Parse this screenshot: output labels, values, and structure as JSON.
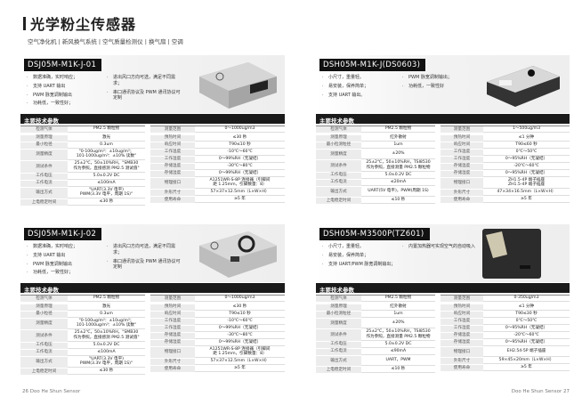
{
  "title": "光学粉尘传感器",
  "subtitle": "空气净化机 | 新风换气系统 | 空气质量检测仪 | 换气扇 | 空调",
  "section_header": "主要技术参数",
  "footer_left": "26  Doo He Shun Sensor",
  "footer_right": "Doo He Shun Sensor  27",
  "products": [
    {
      "model": "DSJ05M-M1K-J-01",
      "device": "silver",
      "bullets_a": [
        "数据准确，实时响应；",
        "支持 UART 输出",
        "PWM 脉宽调制输出",
        "功耗低，一致性好；"
      ],
      "bullets_b": [
        "进出风口方向可选，满足不同需求；",
        "串口通讯协议及 PWM 通讯协议可定制"
      ],
      "left": [
        [
          "检测气体",
          "PM2.5 颗粒物"
        ],
        [
          "测量原理",
          "激光"
        ],
        [
          "最小粒径",
          "0.3um"
        ],
        [
          "测量精度",
          "\"0-100ug/m³：±10ug/m³；\n101-1000ug/m³：±10% 读数\""
        ],
        [
          "测试条件",
          "25±2℃，50±10%RH，\"SMB30\n作为参照，直接感测 PM2.5 测试值\""
        ],
        [
          "工作电压",
          "5.0±0.2V DC"
        ],
        [
          "工作电流",
          "≤100mA"
        ],
        [
          "输出方式",
          "\"UART(3.3V 电平)\nPWM(3.3V 电平，周期 1S)\""
        ],
        [
          "上电稳定时间",
          "≤30 秒"
        ]
      ],
      "right": [
        [
          "测量范围",
          "0～1000ug/m3"
        ],
        [
          "预热时间",
          "≤30 秒"
        ],
        [
          "响应时间",
          "T90≤10 秒"
        ],
        [
          "工作温度",
          "-10℃～60℃"
        ],
        [
          "工作湿度",
          "0～99%RH（无凝结）"
        ],
        [
          "存储温度",
          "-30℃～80℃"
        ],
        [
          "存储湿度",
          "0～99%RH（无凝结）"
        ],
        [
          "物理接口",
          "A1251WR-S-8P 连接器（引脚间\n距 1.25mm，引脚数量：8）"
        ],
        [
          "外形尺寸",
          "57×37×12.5mm（L×W×H）"
        ],
        [
          "使用寿命",
          "≥5 年"
        ]
      ]
    },
    {
      "model": "DSJ05M-M1K-J-02",
      "device": "silver2",
      "bullets_a": [
        "数据准确，实时响应；",
        "支持 UART 输出",
        "PWM 脉宽调制输出",
        "功耗低，一致性好；"
      ],
      "bullets_b": [
        "进出风口方向可选，满足不同需求；",
        "串口通讯协议及 PWM 通讯协议可定制"
      ],
      "left": [
        [
          "检测气体",
          "PM2.5 颗粒物"
        ],
        [
          "测量原理",
          "激光"
        ],
        [
          "最小粒径",
          "0.3um"
        ],
        [
          "测量精度",
          "\"0-100ug/m³：±10ug/m³；\n101-1000ug/m³：±10% 读数\""
        ],
        [
          "测试条件",
          "25±2℃，50±10%RH，\"SMB30\n作为参照，直接感测 PM2.5 测试值\""
        ],
        [
          "工作电压",
          "5.0±0.2V DC"
        ],
        [
          "工作电流",
          "≤100mA"
        ],
        [
          "输出方式",
          "\"UART(3.3V 电平)\nPWM(3.3V 电平，周期 1S)\""
        ],
        [
          "上电稳定时间",
          "≤30 秒"
        ]
      ],
      "right": [
        [
          "测量范围",
          "0～1000ug/m3"
        ],
        [
          "预热时间",
          "≤30 秒"
        ],
        [
          "响应时间",
          "T90≤10 秒"
        ],
        [
          "工作温度",
          "-10℃～60℃"
        ],
        [
          "工作湿度",
          "0～99%RH（无凝结）"
        ],
        [
          "存储温度",
          "-30℃～80℃"
        ],
        [
          "存储湿度",
          "0～99%RH（无凝结）"
        ],
        [
          "物理接口",
          "A1251WR-S-8P 连接器（引脚间\n距 1.25mm，引脚数量：8）"
        ],
        [
          "外形尺寸",
          "57×37×12.5mm（L×W×H）"
        ],
        [
          "使用寿命",
          "≥5 年"
        ]
      ]
    },
    {
      "model": "DSH05M-M1K-J(DS0603)",
      "device": "white",
      "bullets_a": [
        "小尺寸，重量轻。",
        "易安装，保养简单；",
        "支持 UART 输出。"
      ],
      "bullets_b": [
        "PWM 脉宽调制输出；",
        "功耗低，一致性好"
      ],
      "left": [
        [
          "检测气体",
          "PM2.5 颗粒物"
        ],
        [
          "测量原理",
          "红外散射"
        ],
        [
          "最小检测粒径",
          "1um"
        ],
        [
          "测量精度",
          "±20%"
        ],
        [
          "测试条件",
          "25±2℃，50±10%RH，TSI8530\n作为参照，直接测量 PM2.5 颗粒物"
        ],
        [
          "工作电压",
          "5.0±0.2V DC"
        ],
        [
          "工作电流",
          "≤20mA"
        ],
        [
          "输出方式",
          "UART(5V 电平)，PWM(周期 1S)"
        ],
        [
          "上电稳定时间",
          "≤10 秒"
        ]
      ],
      "right": [
        [
          "测量范围",
          "1～500ug/m3"
        ],
        [
          "预热时间",
          "≤1 分钟"
        ],
        [
          "响应时间",
          "T90≤60 秒"
        ],
        [
          "工作温度",
          "0℃～50℃"
        ],
        [
          "工作湿度",
          "0～95%RH（无凝结）"
        ],
        [
          "存储温度",
          "-20℃～60℃"
        ],
        [
          "存储湿度",
          "0～95%RH（无凝结）"
        ],
        [
          "物理接口",
          "ZH1.5-4P 端子插座\nZH1.5-4P 端子插座"
        ],
        [
          "外形尺寸",
          "47×34×16.5mm（L×W×H）"
        ],
        [
          "使用寿命",
          "≥5 年"
        ]
      ]
    },
    {
      "model": "DSH05M-M3500P(TZ601)",
      "device": "black",
      "bullets_a": [
        "小尺寸，重量轻。",
        "易安装，保养简单；",
        "支持 UART/PWM 脉宽调制输出；"
      ],
      "bullets_b": [
        "内置加热器可实现空气的自动吸入"
      ],
      "left": [
        [
          "检测气体",
          "PM2.5 颗粒物"
        ],
        [
          "测量原理",
          "红外散射"
        ],
        [
          "最小检测粒径",
          "1um"
        ],
        [
          "测量精度",
          "±20%"
        ],
        [
          "测试条件",
          "25±2℃，50±10%RH，TSI8530\n作为参照，直接测量 PM2.5 颗粒物"
        ],
        [
          "工作电压",
          "5.0±0.2V DC"
        ],
        [
          "工作电流",
          "≤90mA"
        ],
        [
          "输出方式",
          "UART，PWM"
        ],
        [
          "上电稳定时间",
          "≤10 秒"
        ]
      ],
      "right": [
        [
          "测量范围",
          "0-350ug/m3"
        ],
        [
          "预热时间",
          "≤1 分钟"
        ],
        [
          "响应时间",
          "T90≤30 秒"
        ],
        [
          "工作温度",
          "0℃～50℃"
        ],
        [
          "工作湿度",
          "0～95%RH（无凝结）"
        ],
        [
          "存储温度",
          "-20℃～60℃"
        ],
        [
          "存储湿度",
          "0～95%RH（无凝结）"
        ],
        [
          "物理接口",
          "EH2.54-5P 端子插座"
        ],
        [
          "外形尺寸",
          "59×45×20mm（L×W×H）"
        ],
        [
          "使用寿命",
          "≥5 年"
        ]
      ]
    }
  ]
}
